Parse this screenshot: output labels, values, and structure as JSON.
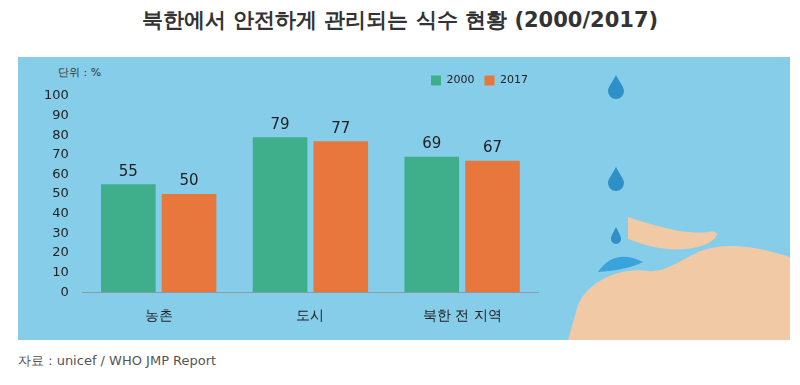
{
  "chart_data": {
    "type": "bar",
    "title": "북한에서 안전하게 관리되는 식수 현황 (2000/2017)",
    "subtitle": "단위 : %",
    "source": "자료 : unicef / WHO JMP Report",
    "categories": [
      "농촌",
      "도시",
      "북한 전 지역"
    ],
    "series": [
      {
        "name": "2000",
        "color": "#3fae8b",
        "values": [
          55,
          79,
          69
        ]
      },
      {
        "name": "2017",
        "color": "#e8773e",
        "values": [
          50,
          77,
          67
        ]
      }
    ],
    "ylim": [
      0,
      100
    ],
    "yticks": [
      0,
      10,
      20,
      30,
      40,
      50,
      60,
      70,
      80,
      90,
      100
    ],
    "grid": false,
    "legend": "upper right",
    "data_labels": true
  }
}
